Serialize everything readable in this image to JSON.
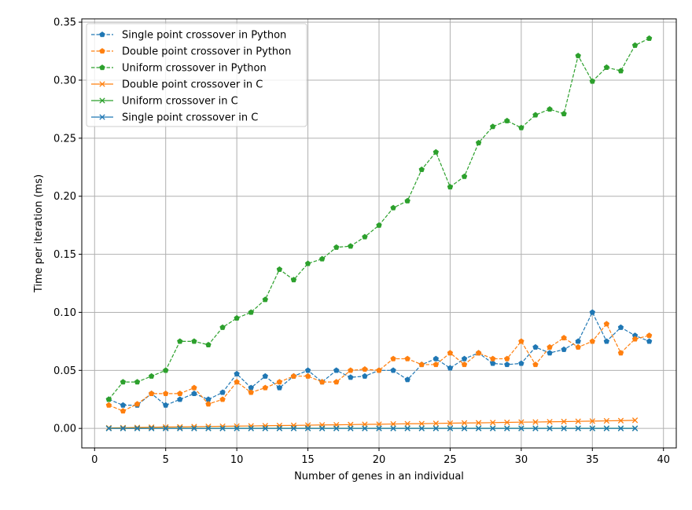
{
  "chart_data": {
    "type": "line",
    "xlabel": "Number of genes in an individual",
    "ylabel": "Time per iteration (ms)",
    "xlim": [
      -0.9,
      40.9
    ],
    "ylim": [
      -0.0168,
      0.3528
    ],
    "xticks": [
      0,
      5,
      10,
      15,
      20,
      25,
      30,
      35,
      40
    ],
    "yticks": [
      0.0,
      0.05,
      0.1,
      0.15,
      0.2,
      0.25,
      0.3,
      0.35
    ],
    "ytick_labels": [
      "0.00",
      "0.05",
      "0.10",
      "0.15",
      "0.20",
      "0.25",
      "0.30",
      "0.35"
    ],
    "grid": true,
    "legend_position": "top-left",
    "series": [
      {
        "name": "Single point crossover in Python",
        "color": "#1f77b4",
        "line_style": "dashed",
        "marker": "pentagon",
        "x": [
          1,
          2,
          3,
          4,
          5,
          6,
          7,
          8,
          9,
          10,
          11,
          12,
          13,
          14,
          15,
          16,
          17,
          18,
          19,
          20,
          21,
          22,
          23,
          24,
          25,
          26,
          27,
          28,
          29,
          30,
          31,
          32,
          33,
          34,
          35,
          36,
          37,
          38,
          39
        ],
        "values": [
          0.025,
          0.02,
          0.02,
          0.03,
          0.02,
          0.025,
          0.03,
          0.025,
          0.031,
          0.047,
          0.035,
          0.045,
          0.035,
          0.045,
          0.05,
          0.04,
          0.05,
          0.044,
          0.045,
          0.05,
          0.05,
          0.042,
          0.055,
          0.06,
          0.052,
          0.06,
          0.065,
          0.056,
          0.055,
          0.056,
          0.07,
          0.065,
          0.068,
          0.075,
          0.1,
          0.075,
          0.087,
          0.08,
          0.075
        ]
      },
      {
        "name": "Double point crossover in Python",
        "color": "#ff7f0e",
        "line_style": "dashed",
        "marker": "pentagon",
        "x": [
          1,
          2,
          3,
          4,
          5,
          6,
          7,
          8,
          9,
          10,
          11,
          12,
          13,
          14,
          15,
          16,
          17,
          18,
          19,
          20,
          21,
          22,
          23,
          24,
          25,
          26,
          27,
          28,
          29,
          30,
          31,
          32,
          33,
          34,
          35,
          36,
          37,
          38,
          39
        ],
        "values": [
          0.02,
          0.015,
          0.021,
          0.03,
          0.03,
          0.03,
          0.035,
          0.021,
          0.025,
          0.04,
          0.031,
          0.035,
          0.04,
          0.045,
          0.045,
          0.04,
          0.04,
          0.05,
          0.051,
          0.05,
          0.06,
          0.06,
          0.055,
          0.055,
          0.065,
          0.055,
          0.065,
          0.06,
          0.06,
          0.075,
          0.055,
          0.07,
          0.078,
          0.07,
          0.075,
          0.09,
          0.065,
          0.077,
          0.08
        ]
      },
      {
        "name": "Uniform crossover in Python",
        "color": "#2ca02c",
        "line_style": "dashed",
        "marker": "pentagon",
        "x": [
          1,
          2,
          3,
          4,
          5,
          6,
          7,
          8,
          9,
          10,
          11,
          12,
          13,
          14,
          15,
          16,
          17,
          18,
          19,
          20,
          21,
          22,
          23,
          24,
          25,
          26,
          27,
          28,
          29,
          30,
          31,
          32,
          33,
          34,
          35,
          36,
          37,
          38,
          39
        ],
        "values": [
          0.025,
          0.04,
          0.04,
          0.045,
          0.05,
          0.075,
          0.075,
          0.072,
          0.087,
          0.095,
          0.1,
          0.111,
          0.137,
          0.128,
          0.142,
          0.146,
          0.156,
          0.157,
          0.165,
          0.175,
          0.19,
          0.196,
          0.223,
          0.238,
          0.208,
          0.217,
          0.246,
          0.26,
          0.265,
          0.259,
          0.27,
          0.275,
          0.271,
          0.321,
          0.299,
          0.311,
          0.308,
          0.33,
          0.336
        ]
      },
      {
        "name": "Double point crossover in C",
        "color": "#ff7f0e",
        "line_style": "solid",
        "marker": "x",
        "x": [
          1,
          2,
          3,
          4,
          5,
          6,
          7,
          8,
          9,
          10,
          11,
          12,
          13,
          14,
          15,
          16,
          17,
          18,
          19,
          20,
          21,
          22,
          23,
          24,
          25,
          26,
          27,
          28,
          29,
          30,
          31,
          32,
          33,
          34,
          35,
          36,
          37,
          38
        ],
        "values": [
          0.0005,
          0.0006,
          0.0008,
          0.001,
          0.0012,
          0.0013,
          0.0015,
          0.0017,
          0.0018,
          0.002,
          0.0021,
          0.0023,
          0.0025,
          0.0026,
          0.0028,
          0.003,
          0.0031,
          0.0033,
          0.0035,
          0.0036,
          0.0038,
          0.004,
          0.0041,
          0.0043,
          0.0045,
          0.0047,
          0.0048,
          0.005,
          0.0052,
          0.0054,
          0.0055,
          0.0057,
          0.0059,
          0.0061,
          0.0063,
          0.0065,
          0.0067,
          0.007
        ]
      },
      {
        "name": "Uniform crossover in C",
        "color": "#2ca02c",
        "line_style": "solid",
        "marker": "x",
        "x": [
          1,
          2,
          3,
          4,
          5,
          6,
          7,
          8,
          9,
          10,
          11,
          12,
          13,
          14,
          15,
          16,
          17,
          18,
          19,
          20,
          21,
          22,
          23,
          24,
          25,
          26,
          27,
          28,
          29,
          30,
          31,
          32,
          33,
          34,
          35,
          36,
          37,
          38
        ],
        "values": [
          0.0001,
          0.0001,
          0.0001,
          0.0001,
          0.0001,
          0.0001,
          0.0001,
          0.0001,
          0.0001,
          0.0001,
          0.0001,
          0.0001,
          0.0001,
          0.0001,
          0.0001,
          0.0001,
          0.0001,
          0.0001,
          0.0001,
          0.0001,
          0.0001,
          0.0001,
          0.0001,
          0.0001,
          0.0001,
          0.0001,
          0.0001,
          0.0001,
          0.0001,
          0.0001,
          0.0001,
          0.0001,
          0.0001,
          0.0001,
          0.0001,
          0.0001,
          0.0001,
          0.0001
        ]
      },
      {
        "name": "Single point crossover in C",
        "color": "#1f77b4",
        "line_style": "solid",
        "marker": "x",
        "x": [
          1,
          2,
          3,
          4,
          5,
          6,
          7,
          8,
          9,
          10,
          11,
          12,
          13,
          14,
          15,
          16,
          17,
          18,
          19,
          20,
          21,
          22,
          23,
          24,
          25,
          26,
          27,
          28,
          29,
          30,
          31,
          32,
          33,
          34,
          35,
          36,
          37,
          38
        ],
        "values": [
          0.0,
          0.0,
          0.0,
          0.0,
          0.0,
          0.0,
          0.0,
          0.0,
          0.0,
          0.0,
          0.0,
          0.0,
          0.0,
          0.0,
          0.0,
          0.0,
          0.0,
          0.0,
          0.0,
          0.0,
          0.0,
          0.0,
          0.0,
          0.0,
          0.0,
          0.0,
          0.0,
          0.0,
          0.0,
          0.0,
          0.0,
          0.0,
          0.0,
          0.0,
          0.0,
          0.0,
          0.0,
          0.0
        ]
      }
    ]
  }
}
